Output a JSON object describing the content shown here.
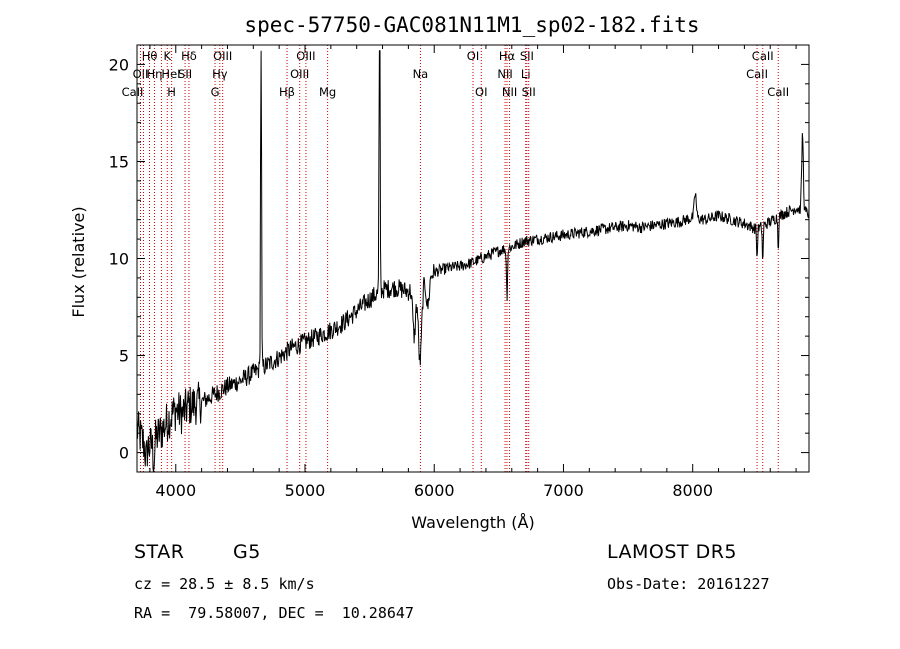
{
  "chart_data": {
    "type": "line",
    "title": "spec-57750-GAC081N11M1_sp02-182.fits",
    "xlabel": "Wavelength (Å)",
    "ylabel": "Flux (relative)",
    "xlim": [
      3700,
      8900
    ],
    "ylim": [
      -1,
      21
    ],
    "xticks": [
      4000,
      5000,
      6000,
      7000,
      8000
    ],
    "yticks": [
      0,
      5,
      10,
      15,
      20
    ],
    "grid": false,
    "series": [
      {
        "anchors": [
          [
            3700,
            1.2
          ],
          [
            3750,
            0.5
          ],
          [
            3800,
            0.3
          ],
          [
            3850,
            0.8
          ],
          [
            3900,
            1.2
          ],
          [
            3950,
            1.8
          ],
          [
            4000,
            2.2
          ],
          [
            4050,
            2.0
          ],
          [
            4100,
            2.4
          ],
          [
            4200,
            2.6
          ],
          [
            4300,
            3.0
          ],
          [
            4400,
            3.4
          ],
          [
            4500,
            3.7
          ],
          [
            4600,
            4.1
          ],
          [
            4700,
            4.5
          ],
          [
            4800,
            4.9
          ],
          [
            4900,
            5.4
          ],
          [
            5000,
            5.7
          ],
          [
            5100,
            6.0
          ],
          [
            5200,
            6.3
          ],
          [
            5300,
            6.7
          ],
          [
            5400,
            7.3
          ],
          [
            5500,
            7.9
          ],
          [
            5600,
            8.4
          ],
          [
            5700,
            8.5
          ],
          [
            5800,
            8.3
          ],
          [
            5900,
            8.7
          ],
          [
            6000,
            9.3
          ],
          [
            6100,
            9.5
          ],
          [
            6200,
            9.6
          ],
          [
            6300,
            9.8
          ],
          [
            6400,
            10.1
          ],
          [
            6500,
            10.4
          ],
          [
            6600,
            10.6
          ],
          [
            6700,
            10.9
          ],
          [
            6800,
            11.0
          ],
          [
            6900,
            11.1
          ],
          [
            7000,
            11.2
          ],
          [
            7100,
            11.3
          ],
          [
            7200,
            11.4
          ],
          [
            7300,
            11.5
          ],
          [
            7400,
            11.6
          ],
          [
            7500,
            11.7
          ],
          [
            7600,
            11.6
          ],
          [
            7700,
            11.7
          ],
          [
            7800,
            11.8
          ],
          [
            7900,
            11.9
          ],
          [
            8000,
            12.1
          ],
          [
            8100,
            12.0
          ],
          [
            8200,
            12.2
          ],
          [
            8300,
            12.0
          ],
          [
            8400,
            11.8
          ],
          [
            8500,
            11.5
          ],
          [
            8600,
            11.9
          ],
          [
            8700,
            12.3
          ],
          [
            8800,
            12.6
          ],
          [
            8900,
            12.3
          ]
        ],
        "features": [
          [
            4660,
            20.5,
            8
          ],
          [
            5577,
            20.5,
            8
          ],
          [
            5890,
            -4.0,
            30
          ],
          [
            5845,
            -2.5,
            25
          ],
          [
            5950,
            -1.5,
            25
          ],
          [
            6563,
            -2.5,
            10
          ],
          [
            8498,
            -1.6,
            8
          ],
          [
            8542,
            -2.0,
            8
          ],
          [
            8662,
            -1.6,
            8
          ],
          [
            8850,
            4.0,
            15
          ],
          [
            8020,
            1.3,
            18
          ],
          [
            3770,
            -0.8,
            15
          ],
          [
            3830,
            -1.0,
            15
          ]
        ]
      }
    ],
    "line_markers": [
      {
        "label": "Hθ",
        "x": 3797,
        "row": 0,
        "anchor": "middle"
      },
      {
        "label": "OII",
        "x": 3727,
        "row": 1,
        "anchor": "middle"
      },
      {
        "label": "CaII",
        "x": 3750,
        "row": 2,
        "anchor": "end"
      },
      {
        "label": "Hη",
        "x": 3835,
        "row": 1,
        "anchor": "middle"
      },
      {
        "label": "HeI",
        "x": 3889,
        "row": 1,
        "anchor": "start"
      },
      {
        "label": "K",
        "x": 3934,
        "row": 0,
        "anchor": "middle"
      },
      {
        "label": "H",
        "x": 3968,
        "row": 2,
        "anchor": "middle"
      },
      {
        "label": "Hδ",
        "x": 4102,
        "row": 0,
        "anchor": "middle"
      },
      {
        "label": "SII",
        "x": 4072,
        "row": 1,
        "anchor": "middle"
      },
      {
        "label": "OIII",
        "x": 4363,
        "row": 0,
        "anchor": "middle"
      },
      {
        "label": "Hγ",
        "x": 4341,
        "row": 1,
        "anchor": "middle"
      },
      {
        "label": "G",
        "x": 4304,
        "row": 2,
        "anchor": "middle"
      },
      {
        "label": "Hβ",
        "x": 4861,
        "row": 2,
        "anchor": "middle"
      },
      {
        "label": "OIII",
        "x": 5007,
        "row": 0,
        "anchor": "middle"
      },
      {
        "label": "OIII",
        "x": 4959,
        "row": 1,
        "anchor": "middle"
      },
      {
        "label": "Mg",
        "x": 5175,
        "row": 2,
        "anchor": "middle"
      },
      {
        "label": "Na",
        "x": 5893,
        "row": 1,
        "anchor": "middle"
      },
      {
        "label": "OI",
        "x": 6300,
        "row": 0,
        "anchor": "middle"
      },
      {
        "label": "OI",
        "x": 6364,
        "row": 2,
        "anchor": "middle"
      },
      {
        "label": "Hα",
        "x": 6563,
        "row": 0,
        "anchor": "middle"
      },
      {
        "label": "NII",
        "x": 6548,
        "row": 1,
        "anchor": "middle"
      },
      {
        "label": "NII",
        "x": 6583,
        "row": 2,
        "anchor": "middle"
      },
      {
        "label": "SII",
        "x": 6717,
        "row": 0,
        "anchor": "middle"
      },
      {
        "label": "Li",
        "x": 6708,
        "row": 1,
        "anchor": "middle"
      },
      {
        "label": "SII",
        "x": 6731,
        "row": 2,
        "anchor": "middle"
      },
      {
        "label": "CaII",
        "x": 8542,
        "row": 0,
        "anchor": "middle"
      },
      {
        "label": "CaII",
        "x": 8498,
        "row": 1,
        "anchor": "middle"
      },
      {
        "label": "CaII",
        "x": 8662,
        "row": 2,
        "anchor": "middle"
      }
    ]
  },
  "info": {
    "class": "STAR",
    "subclass": "G5",
    "survey": "LAMOST DR5",
    "cz": "cz = 28.5 ± 8.5 km/s",
    "obs_date": "Obs-Date: 20161227",
    "coords": "RA =  79.58007, DEC =  10.28647"
  }
}
